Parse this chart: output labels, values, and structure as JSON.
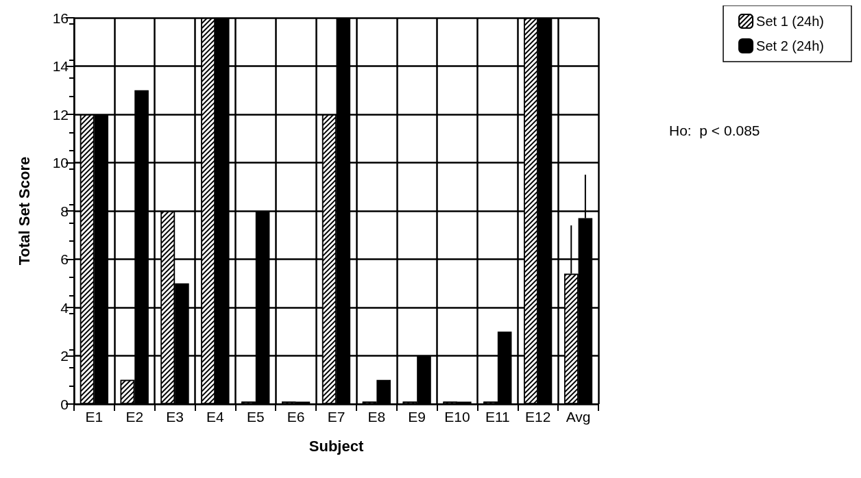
{
  "chart_data": {
    "type": "bar",
    "xlabel": "Subject",
    "ylabel": "Total Set Score",
    "categories": [
      "E1",
      "E2",
      "E3",
      "E4",
      "E5",
      "E6",
      "E7",
      "E8",
      "E9",
      "E10",
      "E11",
      "E12",
      "Avg"
    ],
    "series": [
      {
        "name": "Set 1 (24h)",
        "color": "#ffffff",
        "values": [
          12,
          1,
          8,
          16,
          0.1,
          0.1,
          12,
          0.1,
          0.1,
          0.1,
          0.1,
          16,
          5.4
        ],
        "errors": [
          null,
          null,
          null,
          null,
          null,
          null,
          null,
          null,
          null,
          null,
          null,
          null,
          [
            5.4,
            7.4
          ]
        ]
      },
      {
        "name": "Set 2 (24h)",
        "color": "#000000",
        "values": [
          12,
          13,
          5,
          16,
          8,
          0.1,
          16,
          1,
          2,
          0.1,
          3,
          16,
          7.7
        ],
        "errors": [
          null,
          null,
          null,
          null,
          null,
          null,
          null,
          null,
          null,
          null,
          null,
          null,
          [
            7.7,
            9.5
          ]
        ]
      }
    ],
    "ylim": [
      0,
      16
    ],
    "yticks": [
      0,
      2,
      4,
      6,
      8,
      10,
      12,
      14,
      16
    ],
    "grid": true,
    "legend": "top right",
    "annotations": [
      "Ho:  p < 0.085"
    ]
  }
}
